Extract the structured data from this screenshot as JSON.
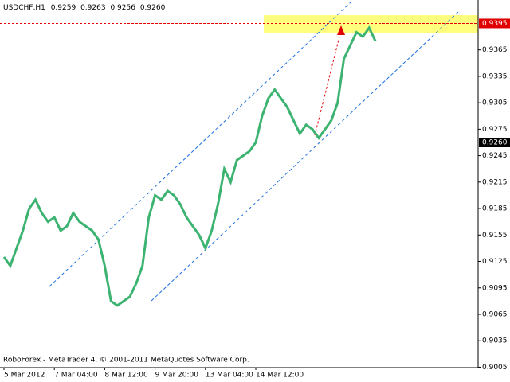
{
  "chart_data": {
    "type": "line",
    "symbol": "USDCHF,H1",
    "ohlc": [
      0.9259,
      0.9263,
      0.9256,
      {
        "value": 0.926,
        "label": "0.9260"
      }
    ],
    "footer": "RoboForex - MetaTrader 4, © 2001-2011 MetaQuotes Software Corp.",
    "categories": [
      "5 Mar 2012",
      null,
      null,
      null,
      null,
      null,
      null,
      null,
      "7 Mar 04:00",
      null,
      null,
      null,
      null,
      null,
      null,
      null,
      "8 Mar 12:00",
      null,
      null,
      null,
      null,
      null,
      null,
      null,
      "9 Mar 20:00",
      null,
      null,
      null,
      null,
      null,
      null,
      null,
      "13 Mar 04:00",
      null,
      null,
      null,
      null,
      null,
      null,
      null,
      "14 Mar 12:00",
      null,
      null,
      null,
      null,
      null,
      null,
      null,
      null,
      null,
      null,
      null,
      null,
      null,
      null,
      null,
      null,
      null,
      null,
      null
    ],
    "series": [
      {
        "name": "USDCHF",
        "color": "#3cb371",
        "values": [
          0.913,
          0.912,
          0.914,
          0.916,
          0.9185,
          0.9195,
          0.918,
          0.917,
          0.9175,
          0.916,
          0.9165,
          0.918,
          0.917,
          0.9165,
          0.916,
          0.915,
          0.912,
          0.908,
          0.9075,
          0.908,
          0.9085,
          0.91,
          0.912,
          0.9175,
          0.92,
          0.9195,
          0.9205,
          0.92,
          0.919,
          0.9175,
          0.9165,
          0.9155,
          0.914,
          0.916,
          0.919,
          0.923,
          0.9215,
          0.924,
          0.9245,
          0.925,
          0.926,
          0.929,
          0.931,
          0.932,
          0.931,
          0.93,
          0.9285,
          0.927,
          0.928,
          0.9275,
          0.9265,
          0.9275,
          0.9285,
          0.9305,
          0.9355,
          0.937,
          0.9385,
          0.938,
          0.939,
          0.9375
        ]
      }
    ],
    "ylim": [
      0.90045,
      0.94216
    ],
    "yticks": [
      0.9005,
      0.9035,
      0.9065,
      0.9095,
      0.9125,
      0.9155,
      0.9185,
      0.9215,
      0.9245,
      0.9275,
      0.9305,
      0.9335,
      0.9365
    ],
    "level": 0.9395,
    "last_price": {
      "value": 0.926,
      "label": "0.9260"
    },
    "grid": false
  }
}
